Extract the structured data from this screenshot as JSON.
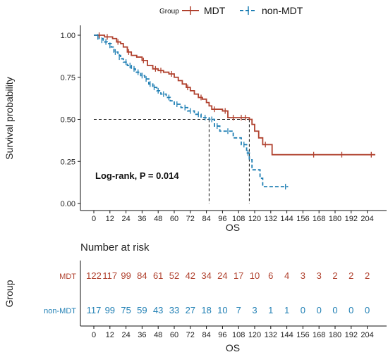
{
  "chart_data": {
    "type": "line",
    "legend": {
      "title": "Group",
      "placement": "top",
      "entries": [
        {
          "name": "MDT",
          "color": "#b0412e"
        },
        {
          "name": "non-MDT",
          "color": "#1f7fb4"
        }
      ]
    },
    "xlabel": "OS",
    "ylabel": "Survival probability",
    "xlim": [
      0,
      210
    ],
    "ylim": [
      0,
      1
    ],
    "x_ticks": [
      "0",
      "12",
      "24",
      "36",
      "48",
      "60",
      "72",
      "84",
      "96",
      "108",
      "120",
      "132",
      "144",
      "156",
      "168",
      "180",
      "192",
      "204"
    ],
    "y_ticks": [
      "0.00",
      "0.25",
      "0.50",
      "0.75",
      "1.00"
    ],
    "grid": false,
    "annotation": "Log-rank, P = 0.014",
    "median_lines": [
      {
        "series": "non-MDT",
        "median": 86,
        "y": 0.5
      },
      {
        "series": "MDT",
        "median": 116,
        "y": 0.5
      }
    ],
    "series": [
      {
        "name": "MDT",
        "color": "#b0412e",
        "line_style": "solid",
        "steps": [
          [
            0,
            1.0
          ],
          [
            8,
            0.99
          ],
          [
            14,
            0.98
          ],
          [
            17,
            0.96
          ],
          [
            20,
            0.95
          ],
          [
            22,
            0.93
          ],
          [
            25,
            0.9
          ],
          [
            28,
            0.88
          ],
          [
            32,
            0.87
          ],
          [
            36,
            0.85
          ],
          [
            40,
            0.82
          ],
          [
            44,
            0.8
          ],
          [
            48,
            0.79
          ],
          [
            52,
            0.78
          ],
          [
            56,
            0.77
          ],
          [
            60,
            0.75
          ],
          [
            63,
            0.73
          ],
          [
            66,
            0.71
          ],
          [
            69,
            0.69
          ],
          [
            72,
            0.67
          ],
          [
            75,
            0.65
          ],
          [
            78,
            0.63
          ],
          [
            81,
            0.62
          ],
          [
            84,
            0.6
          ],
          [
            86,
            0.58
          ],
          [
            88,
            0.56
          ],
          [
            96,
            0.55
          ],
          [
            100,
            0.51
          ],
          [
            116,
            0.5
          ],
          [
            118,
            0.47
          ],
          [
            120,
            0.43
          ],
          [
            123,
            0.39
          ],
          [
            126,
            0.35
          ],
          [
            133,
            0.29
          ],
          [
            210,
            0.29
          ]
        ],
        "censor_marks": [
          [
            4,
            1.0
          ],
          [
            10,
            0.99
          ],
          [
            18,
            0.96
          ],
          [
            26,
            0.9
          ],
          [
            37,
            0.85
          ],
          [
            46,
            0.8
          ],
          [
            50,
            0.79
          ],
          [
            58,
            0.77
          ],
          [
            70,
            0.69
          ],
          [
            80,
            0.63
          ],
          [
            90,
            0.56
          ],
          [
            98,
            0.55
          ],
          [
            104,
            0.51
          ],
          [
            110,
            0.51
          ],
          [
            113,
            0.51
          ],
          [
            128,
            0.35
          ],
          [
            164,
            0.29
          ],
          [
            185,
            0.29
          ],
          [
            207,
            0.29
          ]
        ],
        "at_risk": [
          122,
          117,
          99,
          84,
          61,
          52,
          42,
          34,
          24,
          17,
          10,
          6,
          4,
          3,
          3,
          2,
          2,
          2
        ]
      },
      {
        "name": "non-MDT",
        "color": "#1f7fb4",
        "line_style": "dashed",
        "steps": [
          [
            0,
            1.0
          ],
          [
            4,
            0.98
          ],
          [
            7,
            0.96
          ],
          [
            10,
            0.95
          ],
          [
            13,
            0.93
          ],
          [
            15,
            0.9
          ],
          [
            18,
            0.88
          ],
          [
            20,
            0.86
          ],
          [
            22,
            0.84
          ],
          [
            25,
            0.82
          ],
          [
            28,
            0.8
          ],
          [
            31,
            0.78
          ],
          [
            35,
            0.76
          ],
          [
            38,
            0.74
          ],
          [
            41,
            0.71
          ],
          [
            44,
            0.69
          ],
          [
            47,
            0.67
          ],
          [
            50,
            0.65
          ],
          [
            54,
            0.63
          ],
          [
            57,
            0.61
          ],
          [
            60,
            0.59
          ],
          [
            65,
            0.57
          ],
          [
            70,
            0.55
          ],
          [
            75,
            0.53
          ],
          [
            80,
            0.51
          ],
          [
            86,
            0.5
          ],
          [
            90,
            0.46
          ],
          [
            94,
            0.43
          ],
          [
            104,
            0.39
          ],
          [
            110,
            0.35
          ],
          [
            114,
            0.3
          ],
          [
            116,
            0.26
          ],
          [
            118,
            0.2
          ],
          [
            124,
            0.15
          ],
          [
            126,
            0.1
          ],
          [
            145,
            0.1
          ]
        ],
        "censor_marks": [
          [
            3,
            0.99
          ],
          [
            6,
            0.97
          ],
          [
            9,
            0.96
          ],
          [
            12,
            0.94
          ],
          [
            16,
            0.9
          ],
          [
            19,
            0.87
          ],
          [
            24,
            0.84
          ],
          [
            27,
            0.82
          ],
          [
            30,
            0.8
          ],
          [
            33,
            0.78
          ],
          [
            36,
            0.76
          ],
          [
            39,
            0.74
          ],
          [
            42,
            0.71
          ],
          [
            45,
            0.69
          ],
          [
            48,
            0.67
          ],
          [
            52,
            0.65
          ],
          [
            56,
            0.63
          ],
          [
            62,
            0.59
          ],
          [
            68,
            0.57
          ],
          [
            72,
            0.55
          ],
          [
            78,
            0.53
          ],
          [
            83,
            0.51
          ],
          [
            88,
            0.5
          ],
          [
            92,
            0.46
          ],
          [
            100,
            0.43
          ],
          [
            112,
            0.35
          ],
          [
            115,
            0.3
          ],
          [
            143,
            0.1
          ]
        ],
        "at_risk": [
          117,
          99,
          75,
          59,
          43,
          33,
          27,
          18,
          10,
          7,
          3,
          1,
          1,
          0,
          0,
          0,
          0,
          0
        ]
      }
    ],
    "risk_table": {
      "title": "Number at risk",
      "ylabel": "Group",
      "xlabel": "OS",
      "rows": [
        "MDT",
        "non-MDT"
      ]
    }
  }
}
